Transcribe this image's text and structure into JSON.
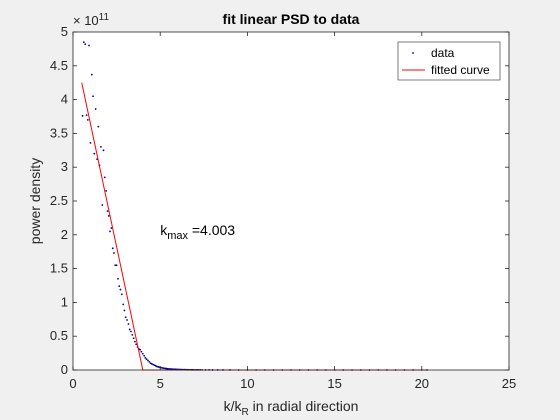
{
  "chart_data": {
    "type": "scatter",
    "title": "fit linear PSD to data",
    "xlabel": {
      "main": "k/k",
      "sub": "R",
      "rest": " in radial direction"
    },
    "ylabel": "power density",
    "xlim": [
      0,
      25
    ],
    "ylim": [
      0,
      500000000000.0
    ],
    "x_ticks": [
      0,
      5,
      10,
      15,
      20,
      25
    ],
    "x_tick_labels": [
      "0",
      "5",
      "10",
      "15",
      "20",
      "25"
    ],
    "y_ticks": [
      0,
      50000000000.0,
      100000000000.0,
      150000000000.0,
      200000000000.0,
      250000000000.0,
      300000000000.0,
      350000000000.0,
      400000000000.0,
      450000000000.0,
      500000000000.0
    ],
    "y_tick_labels": [
      "0",
      "0.5",
      "1",
      "1.5",
      "2",
      "2.5",
      "3",
      "3.5",
      "4",
      "4.5",
      "5"
    ],
    "y_exponent": {
      "base": "× 10",
      "power": "11"
    },
    "grid": false,
    "legend_position": "top-right",
    "annotation": {
      "main": "k",
      "sub": "max",
      "rest": " =4.003",
      "x": 5,
      "y": 200000000000.0
    },
    "colors": {
      "data": "#00008b",
      "fit": "#ff0000"
    },
    "series": [
      {
        "name": "data",
        "kind": "points",
        "x": [
          0.55,
          0.62,
          0.7,
          0.78,
          0.85,
          0.92,
          1.0,
          1.08,
          1.15,
          1.22,
          1.3,
          1.38,
          1.45,
          1.52,
          1.6,
          1.68,
          1.75,
          1.82,
          1.9,
          1.98,
          2.05,
          2.12,
          2.2,
          2.28,
          2.35,
          2.42,
          2.5,
          2.58,
          2.65,
          2.72,
          2.8,
          2.88,
          2.95,
          3.02,
          3.1,
          3.18,
          3.25,
          3.32,
          3.4,
          3.48,
          3.55,
          3.62,
          3.7,
          3.78,
          3.85,
          3.92,
          4.0,
          4.08,
          4.15,
          4.22,
          4.3,
          4.38,
          4.45,
          4.52,
          4.6,
          4.68,
          4.75,
          4.82,
          4.9,
          4.98,
          5.05,
          5.12,
          5.2,
          5.28,
          5.35,
          5.42,
          5.5,
          5.58,
          5.65,
          5.72,
          5.8,
          5.88,
          5.95,
          6.02,
          6.1,
          6.18,
          6.25,
          6.32,
          6.4,
          6.48,
          6.55,
          6.62,
          6.7,
          6.78,
          6.85,
          6.92,
          7.0,
          7.08,
          7.15,
          7.22,
          7.3,
          7.4,
          7.6,
          7.8,
          8.0,
          8.3,
          8.6,
          9.0,
          9.5,
          10.0,
          10.5,
          11.0,
          11.5,
          12.0,
          12.5,
          13.0,
          13.5,
          14.0,
          14.5,
          15.0,
          15.5,
          16.0,
          16.5,
          17.0,
          17.5,
          18.0,
          18.5,
          19.0,
          19.5,
          20.0,
          20.3
        ],
        "y": [
          376000000000.0,
          485000000000.0,
          482000000000.0,
          377000000000.0,
          370000000000.0,
          480000000000.0,
          336000000000.0,
          437000000000.0,
          405000000000.0,
          320000000000.0,
          386000000000.0,
          312000000000.0,
          360000000000.0,
          303000000000.0,
          330000000000.0,
          244000000000.0,
          325000000000.0,
          285000000000.0,
          265000000000.0,
          235000000000.0,
          228000000000.0,
          205000000000.0,
          210000000000.0,
          180000000000.0,
          173000000000.0,
          155000000000.0,
          155000000000.0,
          135000000000.0,
          124000000000.0,
          119000000000.0,
          112000000000.0,
          97000000000.0,
          88000000000.0,
          78000000000.0,
          74000000000.0,
          68000000000.0,
          60000000000.0,
          57000000000.0,
          52000000000.0,
          47000000000.0,
          42000000000.0,
          38000000000.0,
          34000000000.0,
          31000000000.0,
          30000000000.0,
          27000000000.0,
          24000000000.0,
          21000000000.0,
          18000000000.0,
          16000000000.0,
          14000000000.0,
          12000000000.0,
          10000000000.0,
          9000000000.0,
          8000000000.0,
          7000000000.0,
          6000000000.0,
          5000000000.0,
          4500000000.0,
          4000000000.0,
          3500000000.0,
          3000000000.0,
          2700000000.0,
          2400000000.0,
          2100000000.0,
          1900000000.0,
          1700000000.0,
          1500000000.0,
          1300000000.0,
          1200000000.0,
          1100000000.0,
          1000000000.0,
          900000000.0,
          800000000.0,
          700000000.0,
          650000000.0,
          600000000.0,
          550000000.0,
          500000000.0,
          450000000.0,
          400000000.0,
          360000000.0,
          330000000.0,
          300000000.0,
          270000000.0,
          240000000.0,
          220000000.0,
          200000000.0,
          180000000.0,
          160000000.0,
          150000000.0,
          130000000.0,
          110000000.0,
          100000000.0,
          90000000.0,
          80000000.0,
          70000000.0,
          60000000.0,
          50000000.0,
          40000000.0,
          40000000.0,
          30000000.0,
          30000000.0,
          30000000.0,
          20000000.0,
          20000000.0,
          20000000.0,
          20000000.0,
          10000000.0,
          10000000.0,
          10000000.0,
          10000000.0,
          10000000.0,
          10000000.0,
          10000000.0,
          10000000.0,
          10000000.0,
          10000000.0,
          10000000.0,
          10000000.0,
          10000000.0
        ]
      },
      {
        "name": "fitted curve",
        "kind": "line",
        "x": [
          0.5,
          4.003,
          20.3
        ],
        "y": [
          425000000000.0,
          0,
          0
        ]
      }
    ]
  }
}
